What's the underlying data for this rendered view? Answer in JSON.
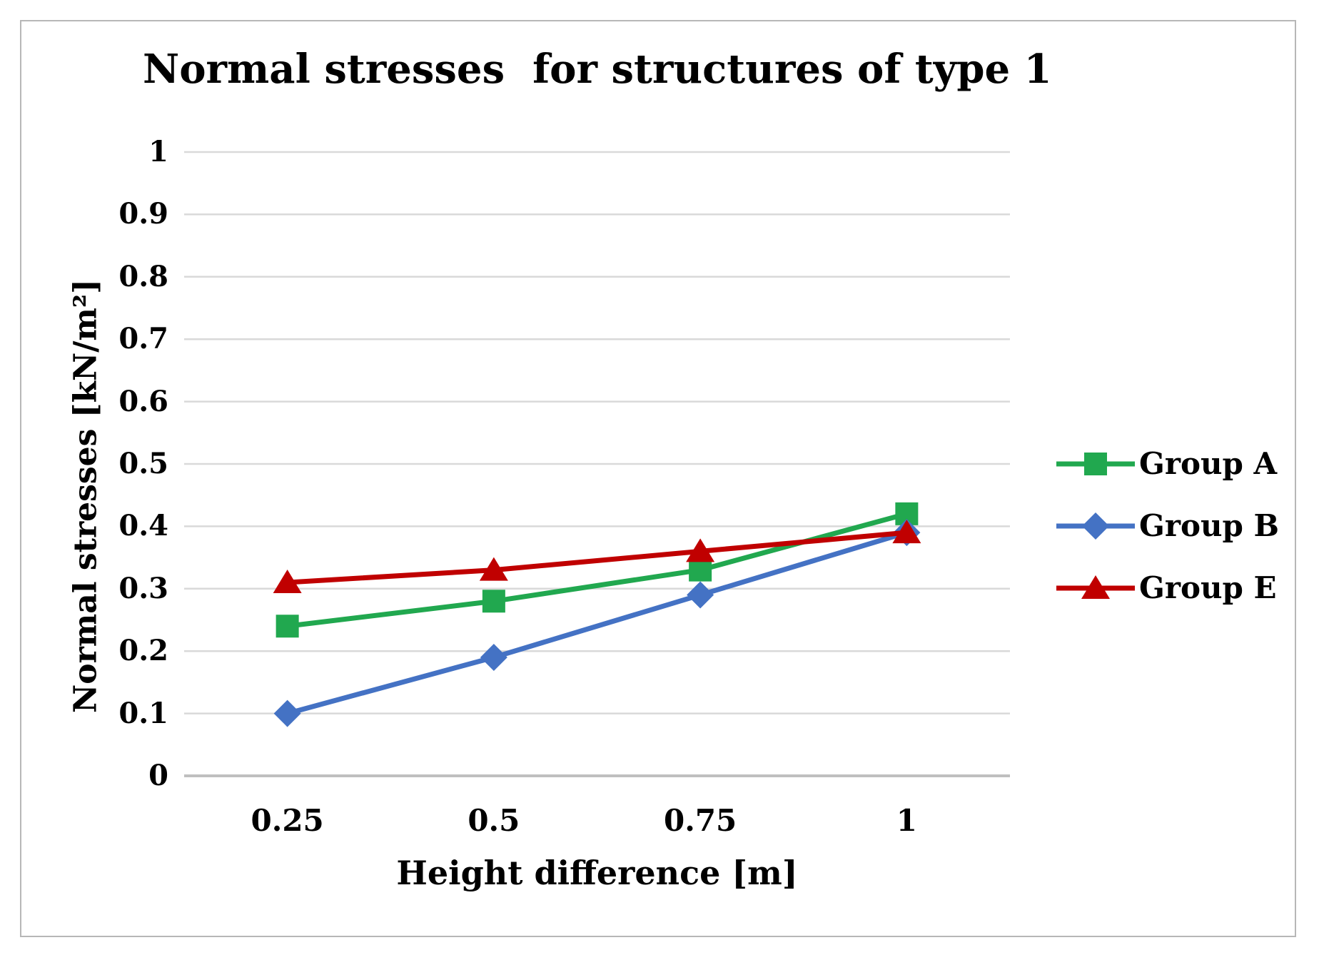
{
  "chart_data": {
    "type": "line",
    "title": "Normal stresses  for structures of type 1",
    "x_axis_title": "Height difference [m]",
    "y_axis_title": "Normal stresses [kN/m²]",
    "categories": [
      "0.25",
      "0.5",
      "0.75",
      "1"
    ],
    "y_ticks": [
      "0",
      "0.1",
      "0.2",
      "0.3",
      "0.4",
      "0.5",
      "0.6",
      "0.7",
      "0.8",
      "0.9",
      "1"
    ],
    "ylim": [
      0,
      1
    ],
    "grid": true,
    "legend_position": "right",
    "series": [
      {
        "name": "Group A",
        "marker": "square",
        "color": "#21a84f",
        "values": [
          0.24,
          0.28,
          0.33,
          0.42
        ]
      },
      {
        "name": "Group B",
        "marker": "diamond",
        "color": "#4472c4",
        "values": [
          0.1,
          0.19,
          0.29,
          0.39
        ]
      },
      {
        "name": "Group E",
        "marker": "triangle",
        "color": "#c00000",
        "values": [
          0.31,
          0.33,
          0.36,
          0.39
        ]
      }
    ],
    "colors": {
      "gridline": "#d9d9d9",
      "baseline": "#bfbfbf",
      "frame_border": "#b7b7b7",
      "text": "#000000"
    }
  }
}
